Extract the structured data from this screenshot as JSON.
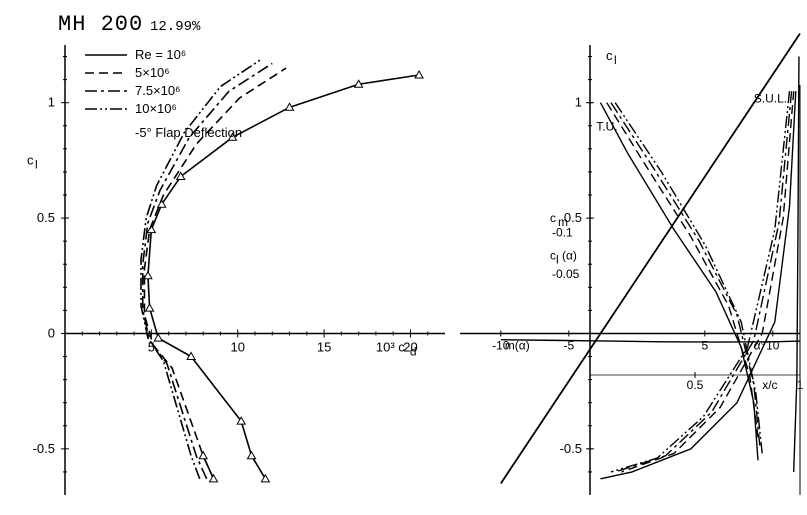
{
  "title": {
    "main": "MH 200",
    "sub": "12.99%"
  },
  "colors": {
    "bg": "#ffffff",
    "stroke": "#000000"
  },
  "legend": {
    "items": [
      {
        "label": "Re = 10⁶",
        "dash": ""
      },
      {
        "label": "5×10⁶",
        "dash": "9,5"
      },
      {
        "label": "7.5×10⁶",
        "dash": "12,4,3,4"
      },
      {
        "label": "10×10⁶",
        "dash": "12,3,2,3,2,3"
      }
    ],
    "note": "-5° Flap Deflection"
  },
  "left": {
    "type": "line",
    "xlabel": "10³ c_d",
    "ylabel": "c_l",
    "xlim": [
      0,
      22
    ],
    "ylim": [
      -0.7,
      1.25
    ],
    "xticks": [
      5,
      10,
      15,
      20
    ],
    "yticks": [
      -0.5,
      0,
      0.5,
      1
    ],
    "series": [
      {
        "name": "Re1e6",
        "dash": "",
        "marker": "tri",
        "points": [
          [
            11.6,
            -0.63
          ],
          [
            10.8,
            -0.53
          ],
          [
            10.2,
            -0.38
          ],
          [
            7.3,
            -0.1
          ],
          [
            5.4,
            -0.02
          ],
          [
            4.9,
            0.11
          ],
          [
            4.8,
            0.25
          ],
          [
            5.0,
            0.45
          ],
          [
            5.6,
            0.56
          ],
          [
            6.7,
            0.68
          ],
          [
            9.7,
            0.85
          ],
          [
            13.0,
            0.98
          ],
          [
            17.0,
            1.08
          ],
          [
            20.5,
            1.12
          ]
        ]
      },
      {
        "name": "Re5e6",
        "dash": "9,5",
        "points": [
          [
            8.6,
            -0.63
          ],
          [
            8.0,
            -0.53
          ],
          [
            6.2,
            -0.15
          ],
          [
            5.1,
            -0.05
          ],
          [
            4.6,
            0.08
          ],
          [
            4.6,
            0.28
          ],
          [
            4.9,
            0.45
          ],
          [
            5.7,
            0.6
          ],
          [
            7.6,
            0.82
          ],
          [
            10.1,
            1.02
          ],
          [
            12.8,
            1.15
          ]
        ]
      },
      {
        "name": "Re7.5e6",
        "dash": "12,4,3,4",
        "points": [
          [
            8.2,
            -0.63
          ],
          [
            7.6,
            -0.53
          ],
          [
            5.9,
            -0.13
          ],
          [
            4.9,
            -0.03
          ],
          [
            4.5,
            0.1
          ],
          [
            4.5,
            0.3
          ],
          [
            4.8,
            0.48
          ],
          [
            5.5,
            0.62
          ],
          [
            7.2,
            0.85
          ],
          [
            9.5,
            1.05
          ],
          [
            12.0,
            1.17
          ]
        ]
      },
      {
        "name": "Re10e6",
        "dash": "12,3,2,3,2,3",
        "points": [
          [
            7.8,
            -0.63
          ],
          [
            7.3,
            -0.53
          ],
          [
            5.7,
            -0.12
          ],
          [
            4.8,
            -0.02
          ],
          [
            4.4,
            0.12
          ],
          [
            4.4,
            0.32
          ],
          [
            4.7,
            0.5
          ],
          [
            5.3,
            0.64
          ],
          [
            6.9,
            0.87
          ],
          [
            9.0,
            1.07
          ],
          [
            11.4,
            1.19
          ]
        ]
      },
      {
        "name": "flap",
        "dash": "",
        "marker": "tri",
        "points": [
          [
            8.6,
            -0.63
          ],
          [
            8.0,
            -0.53
          ]
        ]
      }
    ]
  },
  "right": {
    "type": "multi",
    "ylabel": "c_l",
    "yticks": [
      -0.5,
      0.5,
      1
    ],
    "alpha": {
      "label": "α°",
      "ticks": [
        -10,
        -5,
        5,
        10
      ],
      "line": [
        [
          -10,
          -0.65
        ],
        [
          12,
          1.3
        ]
      ]
    },
    "xc": {
      "label": "x/c",
      "ticks": [
        0.5,
        1
      ]
    },
    "cm": {
      "label": "c_m",
      "ticks": [
        -0.1,
        -0.05
      ],
      "mlabel": "m(α)",
      "clabel": "c_l(α)"
    },
    "anno": {
      "TU": "T.U.",
      "SUL": "S.U.L."
    },
    "cm_curve": [
      [
        -10,
        -0.045
      ],
      [
        -6,
        -0.05
      ],
      [
        -2,
        -0.055
      ],
      [
        2,
        -0.06
      ],
      [
        6,
        -0.062
      ],
      [
        10,
        -0.06
      ],
      [
        12,
        -0.055
      ]
    ],
    "transition": {
      "upper": [
        {
          "dash": "",
          "points": [
            [
              0.05,
              1.0
            ],
            [
              0.18,
              0.78
            ],
            [
              0.4,
              0.45
            ],
            [
              0.6,
              0.18
            ],
            [
              0.72,
              -0.06
            ],
            [
              0.78,
              -0.3
            ],
            [
              0.8,
              -0.55
            ]
          ]
        },
        {
          "dash": "9,5",
          "points": [
            [
              0.08,
              1.0
            ],
            [
              0.25,
              0.75
            ],
            [
              0.48,
              0.42
            ],
            [
              0.66,
              0.12
            ],
            [
              0.76,
              -0.18
            ],
            [
              0.8,
              -0.45
            ]
          ]
        },
        {
          "dash": "12,4,3,4",
          "points": [
            [
              0.1,
              1.0
            ],
            [
              0.3,
              0.72
            ],
            [
              0.52,
              0.4
            ],
            [
              0.7,
              0.08
            ],
            [
              0.78,
              -0.22
            ],
            [
              0.81,
              -0.5
            ]
          ]
        },
        {
          "dash": "12,3,2,3,2,3",
          "points": [
            [
              0.12,
              1.0
            ],
            [
              0.34,
              0.7
            ],
            [
              0.55,
              0.38
            ],
            [
              0.72,
              0.05
            ],
            [
              0.79,
              -0.26
            ],
            [
              0.82,
              -0.52
            ]
          ]
        }
      ],
      "lower": [
        {
          "dash": "",
          "points": [
            [
              0.98,
              1.05
            ],
            [
              0.95,
              0.55
            ],
            [
              0.88,
              0.05
            ],
            [
              0.7,
              -0.3
            ],
            [
              0.48,
              -0.5
            ],
            [
              0.2,
              -0.6
            ],
            [
              0.05,
              -0.63
            ]
          ]
        },
        {
          "dash": "9,5",
          "points": [
            [
              0.97,
              1.05
            ],
            [
              0.92,
              0.5
            ],
            [
              0.82,
              0.0
            ],
            [
              0.62,
              -0.32
            ],
            [
              0.4,
              -0.52
            ],
            [
              0.15,
              -0.6
            ]
          ]
        },
        {
          "dash": "12,4,3,4",
          "points": [
            [
              0.96,
              1.05
            ],
            [
              0.9,
              0.48
            ],
            [
              0.78,
              -0.03
            ],
            [
              0.58,
              -0.34
            ],
            [
              0.36,
              -0.53
            ],
            [
              0.12,
              -0.6
            ]
          ]
        },
        {
          "dash": "12,3,2,3,2,3",
          "points": [
            [
              0.95,
              1.05
            ],
            [
              0.88,
              0.45
            ],
            [
              0.75,
              -0.06
            ],
            [
              0.54,
              -0.36
            ],
            [
              0.32,
              -0.54
            ],
            [
              0.1,
              -0.6
            ]
          ]
        }
      ],
      "sep": [
        [
          0.995,
          1.2
        ],
        [
          0.99,
          0.4
        ],
        [
          0.985,
          -0.2
        ],
        [
          0.97,
          -0.6
        ]
      ]
    }
  }
}
